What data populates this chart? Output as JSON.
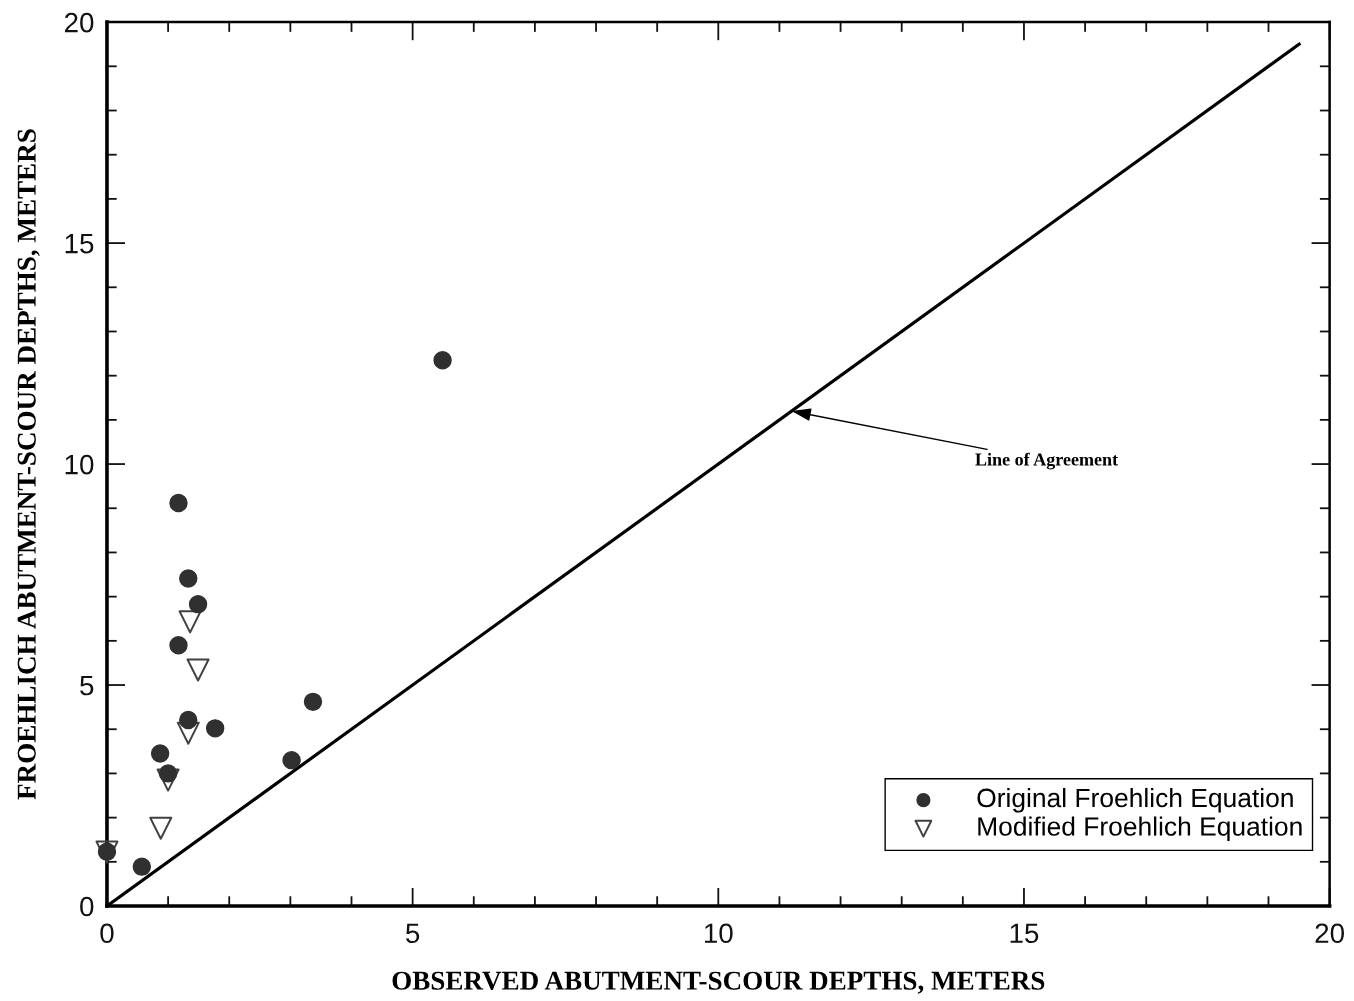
{
  "chart_data": {
    "type": "scatter",
    "xlabel": "OBSERVED ABUTMENT-SCOUR DEPTHS, METERS",
    "ylabel": "FROEHLICH ABUTMENT-SCOUR DEPTHS, METERS",
    "xlim": [
      0,
      20
    ],
    "ylim": [
      0,
      20
    ],
    "xticks": [
      0,
      {
        "value": 1,
        "label": null
      },
      {
        "value": 2,
        "label": null
      },
      {
        "value": 3,
        "label": null
      },
      {
        "value": 4,
        "label": null
      },
      5,
      {
        "value": 6,
        "label": null
      },
      {
        "value": 7,
        "label": null
      },
      {
        "value": 8,
        "label": null
      },
      {
        "value": 9,
        "label": null
      },
      10,
      {
        "value": 11,
        "label": null
      },
      {
        "value": 12,
        "label": null
      },
      {
        "value": 13,
        "label": null
      },
      {
        "value": 14,
        "label": null
      },
      15,
      {
        "value": 16,
        "label": null
      },
      {
        "value": 17,
        "label": null
      },
      {
        "value": 18,
        "label": null
      },
      {
        "value": 19,
        "label": null
      },
      20
    ],
    "yticks": [
      0,
      {
        "value": 1,
        "label": null
      },
      {
        "value": 2,
        "label": null
      },
      {
        "value": 3,
        "label": null
      },
      {
        "value": 4,
        "label": null
      },
      5,
      {
        "value": 6,
        "label": null
      },
      {
        "value": 7,
        "label": null
      },
      {
        "value": 8,
        "label": null
      },
      {
        "value": 9,
        "label": null
      },
      10,
      {
        "value": 11,
        "label": null
      },
      {
        "value": 12,
        "label": null
      },
      {
        "value": 13,
        "label": null
      },
      {
        "value": 14,
        "label": null
      },
      15,
      {
        "value": 16,
        "label": null
      },
      {
        "value": 17,
        "label": null
      },
      {
        "value": 18,
        "label": null
      },
      {
        "value": 19,
        "label": null
      },
      20
    ],
    "series": [
      {
        "name": "Original Froehlich Equation",
        "color": "#303030",
        "marker": "circle",
        "x": [
          5.49,
          1.17,
          1.33,
          1.49,
          1.17,
          3.37,
          1.33,
          1.77,
          0.87,
          1.0,
          3.02,
          0.0,
          0.57
        ],
        "values": [
          12.35,
          9.12,
          7.41,
          6.83,
          5.9,
          4.62,
          4.21,
          4.02,
          3.45,
          3.0,
          3.3,
          1.23,
          0.89
        ]
      },
      {
        "name": "Modified Froehlich Equation",
        "color": "#404040",
        "marker": "triangle",
        "x": [
          1.36,
          1.49,
          1.33,
          1.0,
          0.88,
          0.0
        ],
        "values": [
          6.43,
          5.34,
          3.91,
          2.85,
          1.76,
          1.22
        ]
      },
      {
        "type": "line",
        "color": "#000000",
        "x": [
          0,
          19.5
        ],
        "values": [
          0,
          19.5
        ]
      }
    ],
    "annotations": [
      {
        "text": "Line of Agreement",
        "x": 11.2,
        "y": 11.2
      }
    ],
    "legend": "bottom right",
    "grid": false
  }
}
